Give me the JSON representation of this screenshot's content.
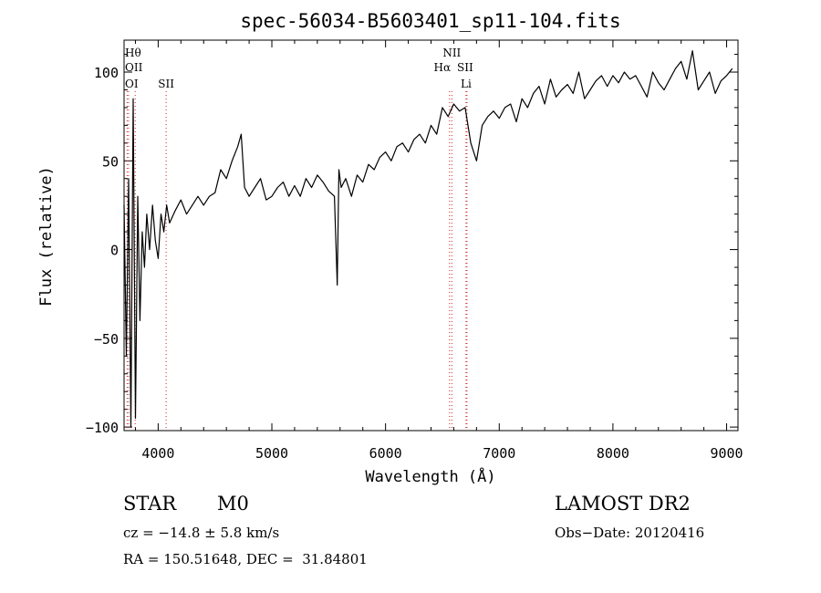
{
  "chart_data": {
    "type": "line",
    "title": "spec-56034-B5603401_sp11-104.fits",
    "xlabel": "Wavelength (Å)",
    "ylabel": "Flux (relative)",
    "xlim": [
      3700,
      9100
    ],
    "ylim": [
      -102,
      118
    ],
    "x_ticks": [
      4000,
      5000,
      6000,
      7000,
      8000,
      9000
    ],
    "y_ticks": [
      -100,
      -50,
      0,
      50,
      100
    ],
    "grid": false,
    "series": [
      {
        "color": "#000000",
        "x": [
          3700,
          3720,
          3740,
          3760,
          3780,
          3800,
          3820,
          3840,
          3860,
          3880,
          3900,
          3925,
          3950,
          3975,
          4000,
          4025,
          4050,
          4075,
          4100,
          4150,
          4200,
          4250,
          4300,
          4350,
          4400,
          4450,
          4500,
          4550,
          4600,
          4650,
          4700,
          4730,
          4760,
          4800,
          4850,
          4900,
          4950,
          5000,
          5050,
          5100,
          5150,
          5200,
          5250,
          5300,
          5350,
          5400,
          5450,
          5500,
          5550,
          5575,
          5590,
          5610,
          5650,
          5700,
          5750,
          5800,
          5850,
          5900,
          5950,
          6000,
          6050,
          6100,
          6150,
          6200,
          6250,
          6300,
          6350,
          6400,
          6450,
          6500,
          6550,
          6600,
          6650,
          6700,
          6750,
          6800,
          6850,
          6900,
          6950,
          7000,
          7050,
          7100,
          7150,
          7200,
          7250,
          7300,
          7350,
          7400,
          7450,
          7500,
          7550,
          7600,
          7650,
          7700,
          7750,
          7800,
          7850,
          7900,
          7950,
          8000,
          8050,
          8100,
          8150,
          8200,
          8250,
          8300,
          8350,
          8400,
          8450,
          8500,
          8550,
          8600,
          8650,
          8700,
          8750,
          8800,
          8850,
          8900,
          8950,
          9000,
          9050
        ],
        "y": [
          25,
          -60,
          40,
          -100,
          85,
          -95,
          30,
          -40,
          10,
          -10,
          20,
          0,
          25,
          5,
          -5,
          20,
          10,
          25,
          15,
          22,
          28,
          20,
          25,
          30,
          25,
          30,
          32,
          45,
          40,
          50,
          58,
          65,
          35,
          30,
          35,
          40,
          28,
          30,
          35,
          38,
          30,
          36,
          30,
          40,
          35,
          42,
          38,
          33,
          30,
          -20,
          45,
          35,
          40,
          30,
          42,
          38,
          48,
          45,
          52,
          55,
          50,
          58,
          60,
          55,
          62,
          65,
          60,
          70,
          65,
          80,
          75,
          82,
          78,
          80,
          60,
          50,
          70,
          75,
          78,
          74,
          80,
          82,
          72,
          85,
          80,
          88,
          92,
          82,
          96,
          86,
          90,
          93,
          88,
          100,
          85,
          90,
          95,
          98,
          92,
          98,
          94,
          100,
          96,
          98,
          92,
          86,
          100,
          94,
          90,
          96,
          102,
          106,
          96,
          112,
          90,
          95,
          100,
          88,
          95,
          98,
          102
        ]
      }
    ],
    "line_markers": [
      {
        "label": "Hθ",
        "x": 3798,
        "color": "#cc2222"
      },
      {
        "label": "OII",
        "x": 3727,
        "color": "#cc2222"
      },
      {
        "label": "OI",
        "x": 3740,
        "color": "#cc2222"
      },
      {
        "label": "SII",
        "x": 4070,
        "color": "#cc2222"
      },
      {
        "label": "NII",
        "x": 6583,
        "color": "#cc2222"
      },
      {
        "label": "Hα",
        "x": 6563,
        "color": "#cc2222"
      },
      {
        "label": "SII",
        "x": 6716,
        "color": "#cc2222"
      },
      {
        "label": "Li",
        "x": 6708,
        "color": "#cc2222"
      }
    ]
  },
  "info": {
    "object_class": "STAR",
    "subclass": "M0",
    "survey": "LAMOST DR2",
    "cz": "cz = −14.8 ± 5.8 km/s",
    "obs_date": "Obs−Date: 20120416",
    "coords": "RA = 150.51648, DEC =  31.84801"
  }
}
